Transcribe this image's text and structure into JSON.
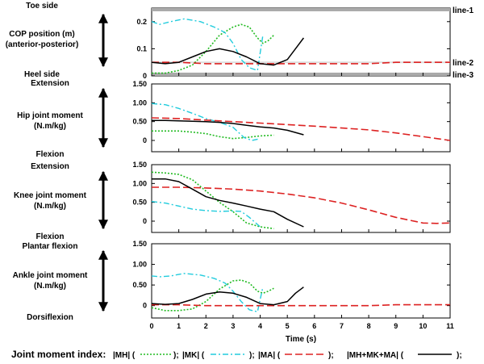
{
  "figure": {
    "legend_title": "Joint moment index:",
    "legend_items": [
      {
        "label": "|MH| (",
        "suffix": ");"
      },
      {
        "label": "|MK| (",
        "suffix": ");"
      },
      {
        "label": "|MA| (",
        "suffix": ");"
      },
      {
        "label": "|MH+MK+MA| (",
        "suffix": ");"
      }
    ],
    "x_label": "Time (s)"
  },
  "chart_data": [
    {
      "type": "line",
      "panel": "cop",
      "title": "COP position (m)",
      "subtitle": "(anterior-posterior)",
      "top_label": "Toe side",
      "bottom_label": "Heel side",
      "reference_lines": [
        "line-1",
        "line-2",
        "line-3"
      ],
      "reference_values": [
        0.25,
        0.05,
        0.0
      ],
      "xlim": [
        0,
        11
      ],
      "ylim": [
        0,
        0.25
      ],
      "yticks": [
        0,
        0.1,
        0.2
      ],
      "ytick_labels": [
        "0",
        "0.1",
        "0.2"
      ],
      "series": [
        {
          "name": "|MH|",
          "color": "#22bb22",
          "x": [
            0,
            0.5,
            1.0,
            1.5,
            2.0,
            2.5,
            3.0,
            3.3,
            3.6,
            3.9,
            4.1,
            4.3,
            4.5
          ],
          "y": [
            0.01,
            0.01,
            0.02,
            0.04,
            0.09,
            0.15,
            0.18,
            0.19,
            0.18,
            0.14,
            0.12,
            0.13,
            0.15
          ]
        },
        {
          "name": "|MK|",
          "color": "#22ccdd",
          "x": [
            0,
            0.3,
            0.7,
            1.2,
            1.8,
            2.3,
            2.7,
            3.0,
            3.3,
            3.6,
            3.9,
            4.1
          ],
          "y": [
            0.2,
            0.19,
            0.2,
            0.21,
            0.2,
            0.18,
            0.16,
            0.12,
            0.06,
            0.03,
            0.02,
            0.15
          ]
        },
        {
          "name": "|MA|",
          "color": "#dd2222",
          "x": [
            0,
            1,
            2,
            3,
            4,
            5,
            6,
            7,
            8,
            9,
            10,
            11
          ],
          "y": [
            0.05,
            0.05,
            0.045,
            0.045,
            0.045,
            0.045,
            0.045,
            0.045,
            0.045,
            0.05,
            0.05,
            0.05
          ]
        },
        {
          "name": "|MH+MK+MA|",
          "color": "#000000",
          "x": [
            0,
            0.5,
            1.0,
            1.5,
            2.0,
            2.5,
            3.0,
            3.5,
            4.0,
            4.5,
            5.0,
            5.3,
            5.6
          ],
          "y": [
            0.05,
            0.045,
            0.05,
            0.07,
            0.09,
            0.1,
            0.09,
            0.07,
            0.045,
            0.04,
            0.06,
            0.1,
            0.14
          ]
        }
      ]
    },
    {
      "type": "line",
      "panel": "hip",
      "title": "Hip joint moment",
      "subtitle": "(N.m/kg)",
      "top_label": "Extension",
      "bottom_label": "Flexion",
      "xlim": [
        0,
        11
      ],
      "ylim": [
        -0.3,
        1.5
      ],
      "yticks": [
        0,
        0.5,
        1.0,
        1.5
      ],
      "ytick_labels": [
        "0",
        "0.50",
        "1.00",
        "1.50"
      ],
      "series": [
        {
          "name": "|MH|",
          "color": "#22bb22",
          "x": [
            0,
            0.5,
            1.0,
            1.5,
            2.0,
            2.5,
            3.0,
            3.5,
            4.0,
            4.5
          ],
          "y": [
            0.25,
            0.25,
            0.25,
            0.22,
            0.18,
            0.1,
            0.05,
            0.08,
            0.12,
            0.14
          ]
        },
        {
          "name": "|MK|",
          "color": "#22ccdd",
          "x": [
            0,
            0.5,
            1.0,
            1.5,
            2.0,
            2.5,
            3.0,
            3.4,
            3.7,
            4.0
          ],
          "y": [
            0.98,
            0.95,
            0.85,
            0.72,
            0.58,
            0.48,
            0.35,
            0.08,
            0.0,
            0.05
          ]
        },
        {
          "name": "|MA|",
          "color": "#dd2222",
          "x": [
            0,
            1,
            2,
            3,
            4,
            5,
            6,
            7,
            8,
            9,
            10,
            11
          ],
          "y": [
            0.6,
            0.58,
            0.54,
            0.5,
            0.46,
            0.42,
            0.38,
            0.33,
            0.28,
            0.2,
            0.1,
            0.0
          ]
        },
        {
          "name": "|MH+MK+MA|",
          "color": "#000000",
          "x": [
            0,
            0.5,
            1.0,
            1.5,
            2.0,
            2.5,
            3.0,
            3.5,
            4.0,
            4.5,
            5.0,
            5.6
          ],
          "y": [
            0.53,
            0.53,
            0.52,
            0.51,
            0.5,
            0.48,
            0.45,
            0.4,
            0.36,
            0.33,
            0.27,
            0.15
          ]
        }
      ]
    },
    {
      "type": "line",
      "panel": "knee",
      "title": "Knee joint moment",
      "subtitle": "(N.m/kg)",
      "top_label": "Extension",
      "bottom_label": "Flexion",
      "xlim": [
        0,
        11
      ],
      "ylim": [
        -0.3,
        1.5
      ],
      "yticks": [
        0,
        0.5,
        1.0,
        1.5
      ],
      "ytick_labels": [
        "0",
        "0.50",
        "1.00",
        "1.50"
      ],
      "series": [
        {
          "name": "|MH|",
          "color": "#22bb22",
          "x": [
            0,
            0.5,
            1.0,
            1.5,
            2.0,
            2.5,
            3.0,
            3.5,
            4.0,
            4.5
          ],
          "y": [
            1.3,
            1.28,
            1.24,
            1.1,
            0.8,
            0.5,
            0.25,
            -0.05,
            -0.15,
            -0.2
          ]
        },
        {
          "name": "|MK|",
          "color": "#22ccdd",
          "x": [
            0,
            0.5,
            1.0,
            1.5,
            2.0,
            2.5,
            3.0,
            3.3,
            3.6,
            4.0
          ],
          "y": [
            0.52,
            0.48,
            0.4,
            0.32,
            0.28,
            0.26,
            0.27,
            0.26,
            0.1,
            -0.15
          ]
        },
        {
          "name": "|MA|",
          "color": "#dd2222",
          "x": [
            0,
            1,
            2,
            3,
            4,
            5,
            6,
            7,
            8,
            9,
            10,
            10.5,
            11
          ],
          "y": [
            0.9,
            0.9,
            0.88,
            0.85,
            0.8,
            0.72,
            0.62,
            0.48,
            0.3,
            0.1,
            -0.05,
            -0.06,
            -0.05
          ]
        },
        {
          "name": "|MH+MK+MA|",
          "color": "#000000",
          "x": [
            0,
            0.5,
            1.0,
            1.5,
            2.0,
            2.5,
            3.0,
            3.5,
            4.0,
            4.5,
            5.0,
            5.6
          ],
          "y": [
            1.12,
            1.12,
            1.05,
            0.85,
            0.65,
            0.55,
            0.48,
            0.4,
            0.32,
            0.25,
            0.05,
            -0.15
          ]
        }
      ]
    },
    {
      "type": "line",
      "panel": "ankle",
      "title": "Ankle joint moment",
      "subtitle": "(N.m/kg)",
      "top_label": "Plantar flexion",
      "bottom_label": "Dorsiflexion",
      "xlim": [
        0,
        11
      ],
      "ylim": [
        -0.3,
        1.5
      ],
      "yticks": [
        0,
        0.5,
        1.0,
        1.5
      ],
      "ytick_labels": [
        "0",
        "0.50",
        "1.00",
        "1.50"
      ],
      "xticks": [
        0,
        1,
        2,
        3,
        4,
        5,
        6,
        7,
        8,
        9,
        10,
        11
      ],
      "series": [
        {
          "name": "|MH|",
          "color": "#22bb22",
          "x": [
            0,
            0.5,
            1.0,
            1.5,
            2.0,
            2.5,
            3.0,
            3.3,
            3.6,
            3.9,
            4.1,
            4.3,
            4.5
          ],
          "y": [
            -0.05,
            -0.12,
            -0.12,
            -0.08,
            0.1,
            0.4,
            0.6,
            0.62,
            0.55,
            0.35,
            0.3,
            0.35,
            0.42
          ]
        },
        {
          "name": "|MK|",
          "color": "#22ccdd",
          "x": [
            0,
            0.3,
            0.7,
            1.2,
            1.8,
            2.3,
            2.7,
            3.0,
            3.3,
            3.6,
            3.9,
            4.1
          ],
          "y": [
            0.72,
            0.7,
            0.72,
            0.78,
            0.74,
            0.66,
            0.55,
            0.35,
            0.1,
            -0.1,
            -0.15,
            0.45
          ]
        },
        {
          "name": "|MA|",
          "color": "#dd2222",
          "x": [
            0,
            1,
            2,
            3,
            4,
            5,
            6,
            7,
            8,
            9,
            10,
            11
          ],
          "y": [
            0.02,
            0.02,
            0.0,
            0.0,
            0.0,
            0.0,
            0.0,
            0.0,
            0.0,
            0.02,
            0.02,
            0.02
          ]
        },
        {
          "name": "|MH+MK+MA|",
          "color": "#000000",
          "x": [
            0,
            0.5,
            1.0,
            1.5,
            2.0,
            2.5,
            3.0,
            3.5,
            4.0,
            4.5,
            5.0,
            5.3,
            5.6
          ],
          "y": [
            0.05,
            0.03,
            0.05,
            0.15,
            0.28,
            0.33,
            0.3,
            0.2,
            0.05,
            0.02,
            0.1,
            0.3,
            0.45
          ]
        }
      ]
    }
  ]
}
